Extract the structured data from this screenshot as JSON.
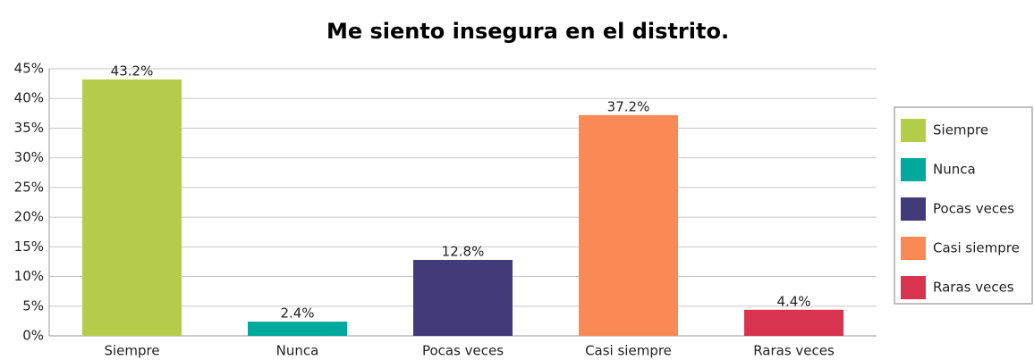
{
  "chart_data": {
    "type": "bar",
    "title": "Me siento insegura en el distrito.",
    "categories": [
      "Siempre",
      "Nunca",
      "Pocas veces",
      "Casi siempre",
      "Raras veces"
    ],
    "values": [
      43.2,
      2.4,
      12.8,
      37.2,
      4.4
    ],
    "value_labels": [
      "43.2%",
      "2.4%",
      "12.8%",
      "37.2%",
      "4.4%"
    ],
    "colors": [
      "#b5cc4a",
      "#00a99d",
      "#433a7a",
      "#f98a56",
      "#d8344f"
    ],
    "ylim": [
      0,
      45
    ],
    "yticks": [
      {
        "value": 0,
        "label": "0%"
      },
      {
        "value": 5,
        "label": "5%"
      },
      {
        "value": 10,
        "label": "10%"
      },
      {
        "value": 15,
        "label": "15%"
      },
      {
        "value": 20,
        "label": "20%"
      },
      {
        "value": 25,
        "label": "25%"
      },
      {
        "value": 30,
        "label": "30%"
      },
      {
        "value": 35,
        "label": "35%"
      },
      {
        "value": 40,
        "label": "40%"
      },
      {
        "value": 45,
        "label": "45%"
      }
    ],
    "grid": true,
    "legend": "right"
  }
}
